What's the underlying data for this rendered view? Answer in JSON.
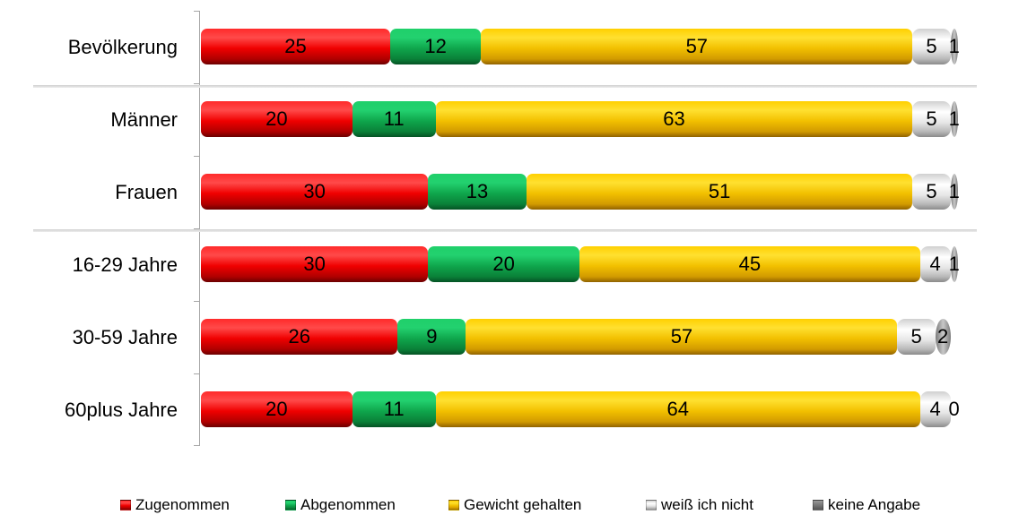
{
  "chart_data": {
    "type": "bar",
    "orientation": "horizontal",
    "stacked": true,
    "title": "",
    "xlabel": "",
    "ylabel": "",
    "xlim": [
      0,
      100
    ],
    "grid": false,
    "legend_position": "bottom",
    "categories": [
      "Bevölkerung",
      "Männer",
      "Frauen",
      "16-29 Jahre",
      "30-59 Jahre",
      "60plus Jahre"
    ],
    "series": [
      {
        "name": "Zugenommen",
        "color": "#ff0000",
        "values": [
          25,
          20,
          30,
          30,
          26,
          20
        ]
      },
      {
        "name": "Abgenommen",
        "color": "#12a150",
        "values": [
          12,
          11,
          13,
          20,
          9,
          11
        ]
      },
      {
        "name": "Gewicht gehalten",
        "color": "#f5c400",
        "values": [
          57,
          63,
          51,
          45,
          57,
          64
        ]
      },
      {
        "name": "weiß ich nicht",
        "color": "#d9d9d9",
        "values": [
          5,
          5,
          5,
          4,
          5,
          4
        ]
      },
      {
        "name": "keine Angabe",
        "color": "#8c8c8c",
        "values": [
          1,
          1,
          1,
          1,
          2,
          0
        ]
      }
    ],
    "group_separators_after": [
      "Bevölkerung",
      "Frauen"
    ]
  },
  "rows": [
    {
      "label": "Bevölkerung",
      "values": [
        "25",
        "12",
        "57",
        "5",
        "1"
      ]
    },
    {
      "label": "Männer",
      "values": [
        "20",
        "11",
        "63",
        "5",
        "1"
      ]
    },
    {
      "label": "Frauen",
      "values": [
        "30",
        "13",
        "51",
        "5",
        "1"
      ]
    },
    {
      "label": "16-29 Jahre",
      "values": [
        "30",
        "20",
        "45",
        "4",
        "1"
      ]
    },
    {
      "label": "30-59 Jahre",
      "values": [
        "26",
        "9",
        "57",
        "5",
        "2"
      ]
    },
    {
      "label": "60plus Jahre",
      "values": [
        "20",
        "11",
        "64",
        "4",
        "0"
      ]
    }
  ],
  "legend": [
    {
      "label": "Zugenommen"
    },
    {
      "label": "Abgenommen"
    },
    {
      "label": "Gewicht gehalten"
    },
    {
      "label": "weiß ich nicht"
    },
    {
      "label": "keine Angabe"
    }
  ]
}
